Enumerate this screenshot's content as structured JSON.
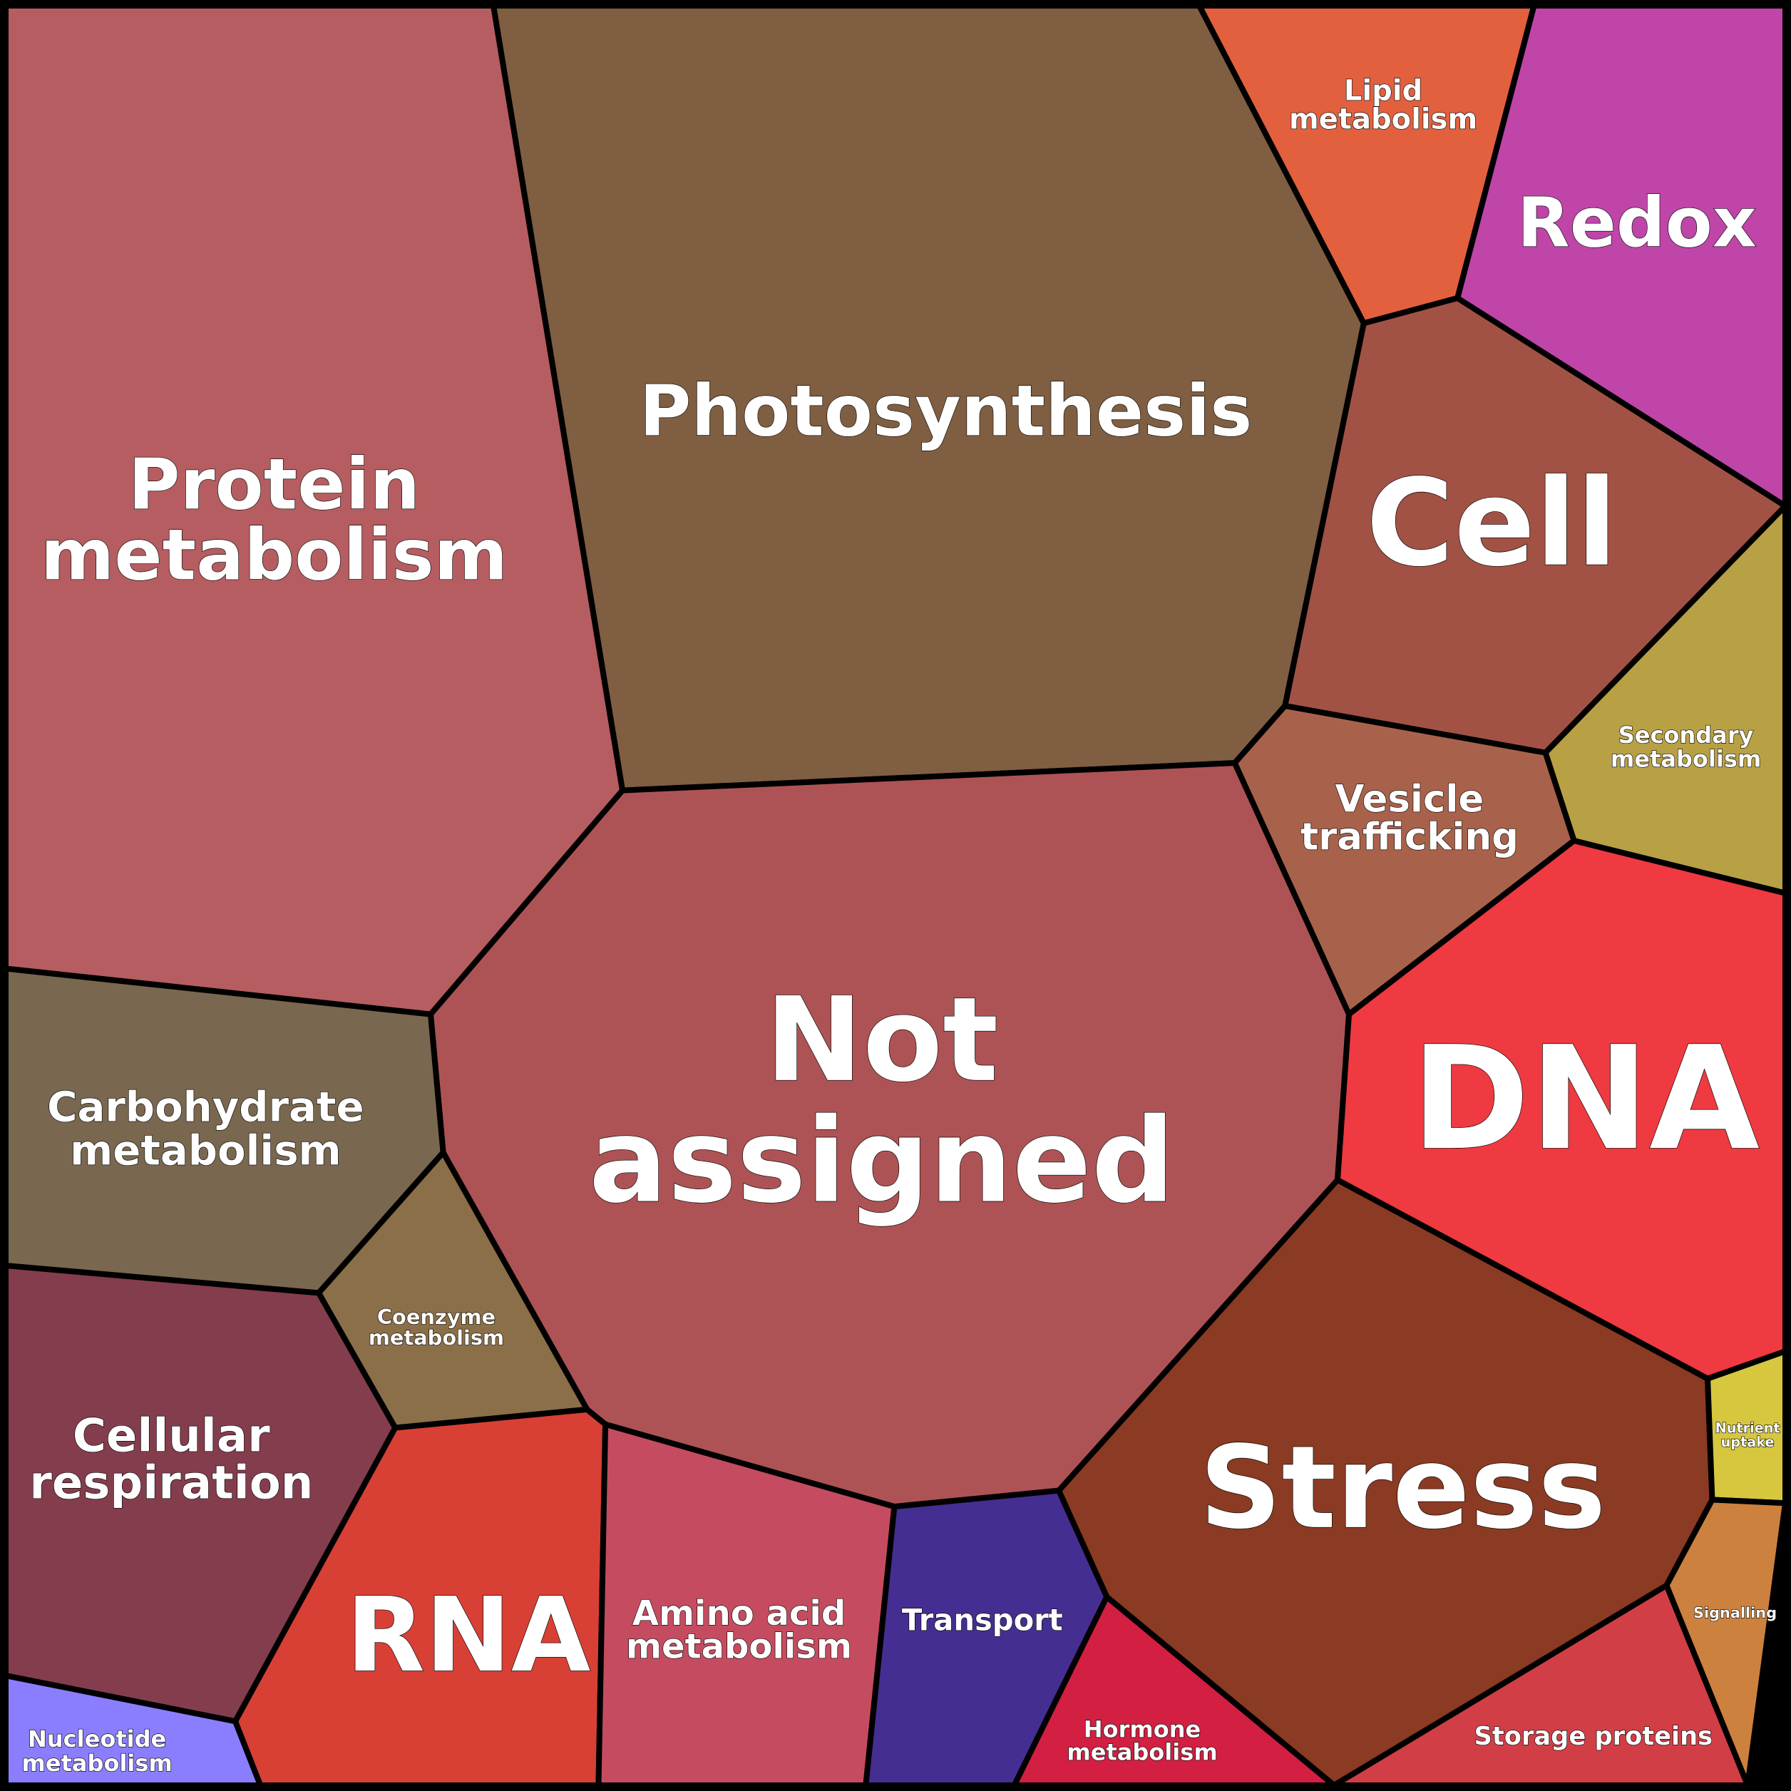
{
  "cells": [
    {
      "lines": [
        "Protein",
        "metabolism"
      ]
    },
    {
      "lines": [
        "Photosynthesis"
      ]
    },
    {
      "lines": [
        "Lipid",
        "metabolism"
      ]
    },
    {
      "lines": [
        "Redox"
      ]
    },
    {
      "lines": [
        "Cell"
      ]
    },
    {
      "lines": [
        "Secondary",
        "metabolism"
      ]
    },
    {
      "lines": [
        "Vesicle",
        "trafficking"
      ]
    },
    {
      "lines": [
        "Not",
        "assigned"
      ]
    },
    {
      "lines": [
        "Carbohydrate",
        "metabolism"
      ]
    },
    {
      "lines": [
        "Coenzyme",
        "metabolism"
      ]
    },
    {
      "lines": [
        "Cellular",
        "respiration"
      ]
    },
    {
      "lines": [
        "Nucleotide",
        "metabolism"
      ]
    },
    {
      "lines": [
        "RNA"
      ]
    },
    {
      "lines": [
        "Amino acid",
        "metabolism"
      ]
    },
    {
      "lines": [
        "Transport"
      ]
    },
    {
      "lines": [
        "Hormone",
        "metabolism"
      ]
    },
    {
      "lines": [
        "Stress"
      ]
    },
    {
      "lines": [
        "DNA"
      ]
    },
    {
      "lines": [
        "Nutrient",
        "uptake"
      ]
    },
    {
      "lines": [
        "Signalling"
      ]
    },
    {
      "lines": [
        "Storage proteins"
      ]
    }
  ]
}
